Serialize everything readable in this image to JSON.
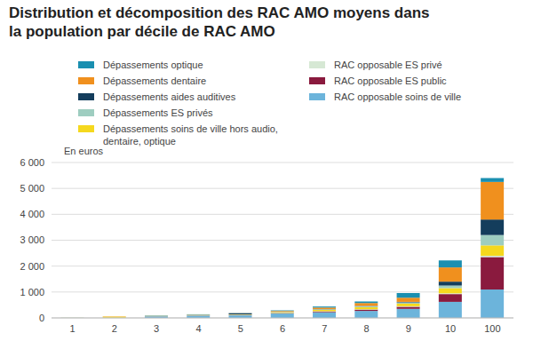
{
  "chart_data": {
    "type": "bar",
    "title": "Distribution et décomposition des RAC AMO moyens dans la population par décile de RAC AMO",
    "y_label": "En euros",
    "categories": [
      "1",
      "2",
      "3",
      "4",
      "5",
      "6",
      "7",
      "8",
      "9",
      "10",
      "100"
    ],
    "stacked": true,
    "grid": true,
    "legend": "top",
    "ylim": [
      0,
      6000
    ],
    "yticks": [
      0,
      {
        "value": 1000,
        "label": "1 000"
      },
      {
        "value": 2000,
        "label": "2 000"
      },
      {
        "value": 3000,
        "label": "3 000"
      },
      {
        "value": 4000,
        "label": "4 000"
      },
      {
        "value": 5000,
        "label": "5 000"
      },
      {
        "value": 6000,
        "label": "6 000"
      }
    ],
    "series": [
      {
        "name": "Dépassements optique",
        "color": "#1a8fb0",
        "values": [
          0,
          0,
          12,
          15,
          7,
          22,
          40,
          60,
          180,
          270,
          150
        ]
      },
      {
        "name": "Dépassements dentaire",
        "color": "#f0901e",
        "values": [
          0,
          10,
          5,
          10,
          5,
          30,
          60,
          110,
          160,
          550,
          1450
        ]
      },
      {
        "name": "Dépassements aides auditives",
        "color": "#143d5c",
        "values": [
          0,
          0,
          0,
          0,
          40,
          0,
          5,
          10,
          20,
          150,
          600
        ]
      },
      {
        "name": "Dépassements ES privés",
        "color": "#9ecdc0",
        "values": [
          0,
          0,
          3,
          5,
          8,
          15,
          25,
          40,
          50,
          100,
          400
        ]
      },
      {
        "name": "Dépassements soins de ville hors audio, dentaire, optique",
        "color": "#f5d81e",
        "values": [
          3,
          40,
          10,
          12,
          15,
          30,
          50,
          80,
          100,
          200,
          400
        ]
      },
      {
        "name": "RAC opposable ES privé",
        "color": "#d6e8d4",
        "values": [
          0,
          0,
          2,
          3,
          5,
          8,
          10,
          15,
          20,
          30,
          50
        ]
      },
      {
        "name": "RAC opposable ES public",
        "color": "#8a1a3e",
        "values": [
          0,
          0,
          3,
          5,
          10,
          15,
          30,
          50,
          80,
          300,
          1250
        ]
      },
      {
        "name": "RAC opposable soins de ville",
        "color": "#6cb4db",
        "values": [
          5,
          10,
          60,
          90,
          100,
          170,
          220,
          270,
          350,
          620,
          1100
        ]
      }
    ]
  }
}
